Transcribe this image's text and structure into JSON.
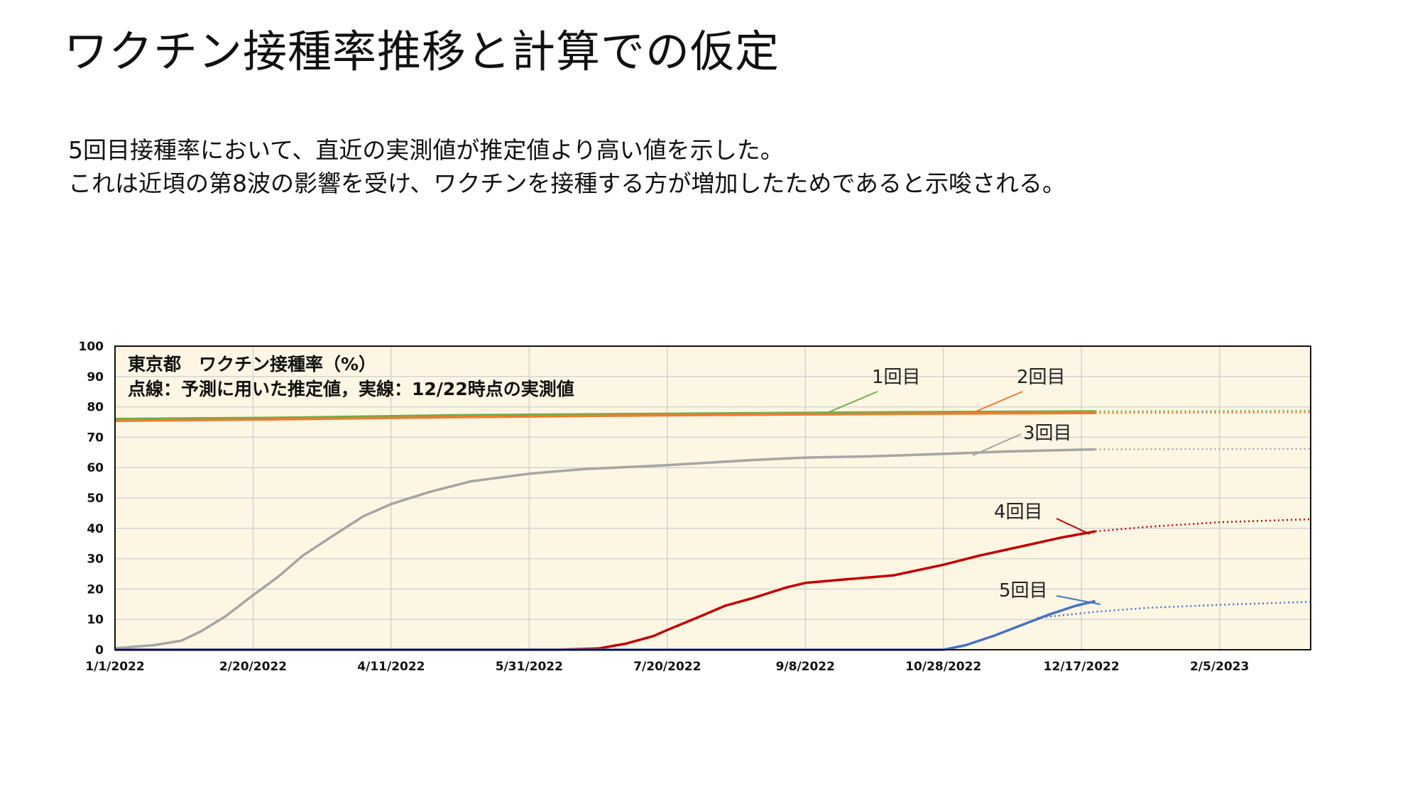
{
  "slide": {
    "title": "ワクチン接種率推移と計算での仮定",
    "body_lines": [
      "5回目接種率において、直近の実測値が推定値より高い値を示した。",
      "これは近頃の第8波の影響を受け、ワクチンを接種する方が増加したためであると示唆される。"
    ]
  },
  "chart_data": {
    "type": "line",
    "title": "東京都　ワクチン接種率（%）",
    "subtitle": "点線：予測に用いた推定値，実線：12/22時点の実測値",
    "xlabel": "",
    "ylabel": "",
    "x_ticks": [
      "1/1/2022",
      "2/20/2022",
      "4/11/2022",
      "5/31/2022",
      "7/20/2022",
      "9/8/2022",
      "10/28/2022",
      "12/17/2022",
      "2/5/2023"
    ],
    "y_ticks": [
      0,
      10,
      20,
      30,
      40,
      50,
      60,
      70,
      80,
      90,
      100
    ],
    "xlim": [
      "2022-01-01",
      "2023-03-10"
    ],
    "ylim": [
      0,
      100
    ],
    "grid": true,
    "plot_background": "#fdf6e3",
    "series": [
      {
        "name": "1回目",
        "color": "#70ad47",
        "actual": [
          [
            "2022-01-01",
            76.0
          ],
          [
            "2022-03-01",
            76.4
          ],
          [
            "2022-05-01",
            77.2
          ],
          [
            "2022-07-01",
            77.6
          ],
          [
            "2022-09-01",
            78.0
          ],
          [
            "2022-11-01",
            78.3
          ],
          [
            "2022-12-22",
            78.5
          ]
        ],
        "estimate": [
          [
            "2022-12-22",
            78.5
          ],
          [
            "2023-03-10",
            78.7
          ]
        ]
      },
      {
        "name": "2回目",
        "color": "#ed7d31",
        "actual": [
          [
            "2022-01-01",
            75.4
          ],
          [
            "2022-03-01",
            75.9
          ],
          [
            "2022-05-01",
            76.6
          ],
          [
            "2022-07-01",
            77.1
          ],
          [
            "2022-09-01",
            77.5
          ],
          [
            "2022-11-01",
            77.8
          ],
          [
            "2022-12-22",
            78.0
          ]
        ],
        "estimate": [
          [
            "2022-12-22",
            78.0
          ],
          [
            "2023-03-10",
            78.2
          ]
        ]
      },
      {
        "name": "3回目",
        "color": "#a5a5a5",
        "actual": [
          [
            "2022-01-01",
            0.5
          ],
          [
            "2022-01-15",
            1.5
          ],
          [
            "2022-01-25",
            3.0
          ],
          [
            "2022-02-01",
            6.0
          ],
          [
            "2022-02-10",
            11.0
          ],
          [
            "2022-02-20",
            18.0
          ],
          [
            "2022-03-01",
            24.0
          ],
          [
            "2022-03-10",
            31.0
          ],
          [
            "2022-03-20",
            37.0
          ],
          [
            "2022-04-01",
            44.0
          ],
          [
            "2022-04-11",
            48.0
          ],
          [
            "2022-04-25",
            52.0
          ],
          [
            "2022-05-10",
            55.5
          ],
          [
            "2022-05-31",
            58.0
          ],
          [
            "2022-06-20",
            59.5
          ],
          [
            "2022-07-20",
            60.8
          ],
          [
            "2022-08-20",
            62.5
          ],
          [
            "2022-09-08",
            63.3
          ],
          [
            "2022-10-01",
            63.7
          ],
          [
            "2022-10-28",
            64.5
          ],
          [
            "2022-11-20",
            65.3
          ],
          [
            "2022-12-22",
            66.0
          ]
        ],
        "estimate": [
          [
            "2022-12-22",
            66.0
          ],
          [
            "2023-03-10",
            66.2
          ]
        ]
      },
      {
        "name": "4回目",
        "color": "#c00000",
        "actual": [
          [
            "2022-01-01",
            0
          ],
          [
            "2022-06-10",
            0
          ],
          [
            "2022-06-25",
            0.4
          ],
          [
            "2022-07-05",
            2.0
          ],
          [
            "2022-07-15",
            4.5
          ],
          [
            "2022-07-20",
            6.5
          ],
          [
            "2022-08-01",
            11.0
          ],
          [
            "2022-08-10",
            14.5
          ],
          [
            "2022-08-20",
            17.0
          ],
          [
            "2022-09-01",
            20.5
          ],
          [
            "2022-09-08",
            22.0
          ],
          [
            "2022-09-20",
            23.0
          ],
          [
            "2022-10-10",
            24.5
          ],
          [
            "2022-10-28",
            28.0
          ],
          [
            "2022-11-10",
            31.0
          ],
          [
            "2022-11-25",
            34.0
          ],
          [
            "2022-12-10",
            37.0
          ],
          [
            "2022-12-22",
            39.0
          ]
        ],
        "estimate": [
          [
            "2022-12-22",
            39.0
          ],
          [
            "2023-01-10",
            40.5
          ],
          [
            "2023-02-05",
            42.0
          ],
          [
            "2023-03-10",
            43.0
          ]
        ]
      },
      {
        "name": "5回目",
        "color": "#4472c4",
        "actual": [
          [
            "2022-01-01",
            0
          ],
          [
            "2022-10-28",
            0
          ],
          [
            "2022-11-05",
            1.5
          ],
          [
            "2022-11-15",
            4.5
          ],
          [
            "2022-11-25",
            8.0
          ],
          [
            "2022-12-05",
            11.5
          ],
          [
            "2022-12-15",
            14.5
          ],
          [
            "2022-12-22",
            16.0
          ]
        ],
        "estimate": [
          [
            "2022-12-01",
            10.5
          ],
          [
            "2022-12-22",
            12.5
          ],
          [
            "2023-01-10",
            13.8
          ],
          [
            "2023-02-05",
            14.8
          ],
          [
            "2023-03-10",
            15.8
          ]
        ]
      }
    ],
    "labels": [
      "1回目",
      "2回目",
      "3回目",
      "4回目",
      "5回目"
    ]
  }
}
